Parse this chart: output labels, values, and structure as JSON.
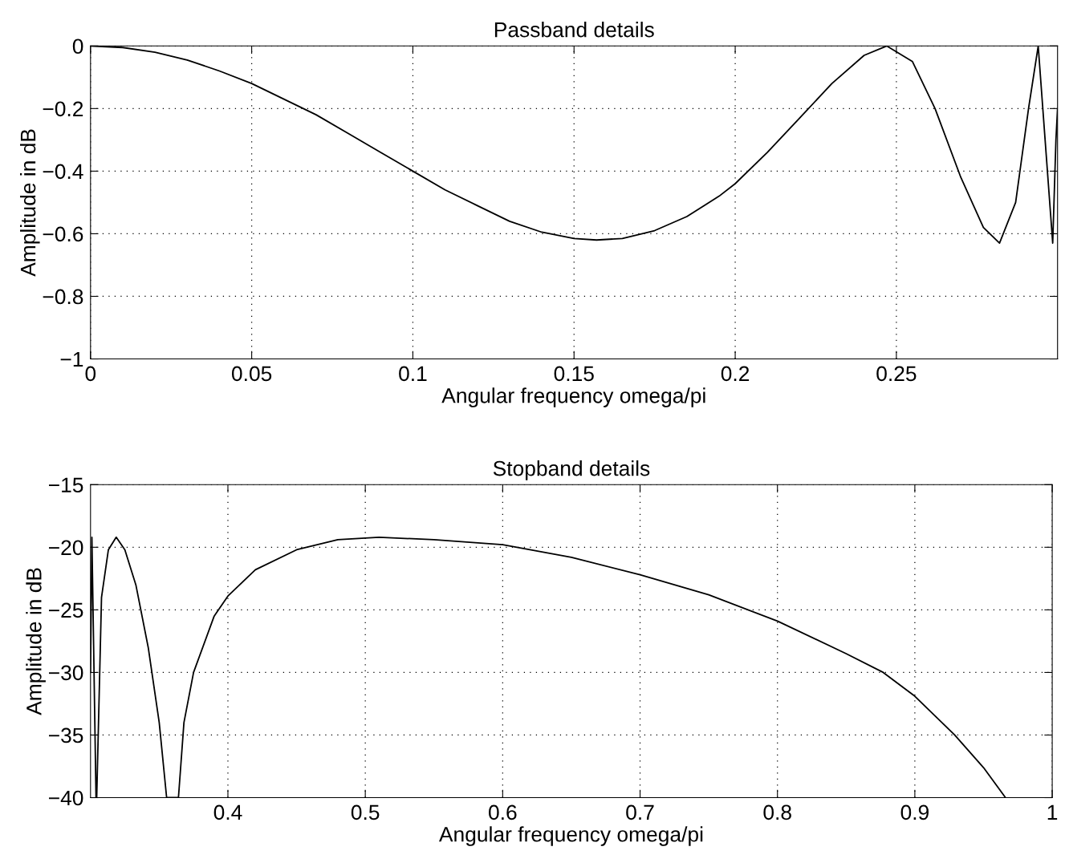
{
  "chart_data": [
    {
      "type": "line",
      "title": "Passband details",
      "xlabel": "Angular frequency omega/pi",
      "ylabel": "Amplitude in dB",
      "x": [
        0,
        0.01,
        0.02,
        0.03,
        0.04,
        0.05,
        0.06,
        0.07,
        0.08,
        0.09,
        0.1,
        0.11,
        0.12,
        0.13,
        0.14,
        0.15,
        0.157,
        0.165,
        0.175,
        0.185,
        0.195,
        0.2,
        0.21,
        0.22,
        0.23,
        0.24,
        0.247,
        0.255,
        0.262,
        0.27,
        0.277,
        0.282,
        0.287,
        0.291,
        0.294,
        0.2965,
        0.2985,
        0.2995,
        0.3
      ],
      "series": [
        {
          "color": "#000000",
          "values": [
            0,
            -0.005,
            -0.02,
            -0.045,
            -0.08,
            -0.12,
            -0.17,
            -0.22,
            -0.28,
            -0.34,
            -0.4,
            -0.46,
            -0.51,
            -0.56,
            -0.595,
            -0.615,
            -0.62,
            -0.615,
            -0.59,
            -0.545,
            -0.48,
            -0.44,
            -0.34,
            -0.23,
            -0.12,
            -0.03,
            0,
            -0.05,
            -0.2,
            -0.42,
            -0.58,
            -0.63,
            -0.5,
            -0.2,
            0,
            -0.35,
            -0.63,
            -0.3,
            -0.2
          ]
        }
      ],
      "xlim": [
        0,
        0.3
      ],
      "xticks": [
        0,
        0.05,
        0.1,
        0.15,
        0.2,
        0.25
      ],
      "ylim": [
        -1,
        0
      ],
      "yticks": [
        -1,
        -0.8,
        -0.6,
        -0.4,
        -0.2,
        0
      ],
      "grid": true,
      "line_style": "solid",
      "marker": "none"
    },
    {
      "type": "line",
      "title": "Stopband details",
      "xlabel": "Angular frequency omega/pi",
      "ylabel": "Amplitude in dB",
      "x": [
        0.3,
        0.301,
        0.304,
        0.3045,
        0.308,
        0.313,
        0.3187,
        0.325,
        0.333,
        0.342,
        0.35,
        0.3554,
        0.364,
        0.368,
        0.375,
        0.39,
        0.4,
        0.42,
        0.45,
        0.48,
        0.51,
        0.55,
        0.6,
        0.65,
        0.7,
        0.75,
        0.8,
        0.85,
        0.877,
        0.9,
        0.929,
        0.95,
        0.966
      ],
      "series": [
        {
          "color": "#000000",
          "values": [
            -30,
            -19.2,
            -40,
            -40,
            -24,
            -20.2,
            -19.2,
            -20.2,
            -23,
            -28,
            -34,
            -40,
            -40,
            -34,
            -30,
            -25.5,
            -23.9,
            -21.8,
            -20.2,
            -19.4,
            -19.2,
            -19.4,
            -19.8,
            -20.8,
            -22.2,
            -23.8,
            -25.9,
            -28.5,
            -30,
            -31.9,
            -35,
            -37.6,
            -40
          ]
        }
      ],
      "xlim": [
        0.3,
        1
      ],
      "xticks": [
        0.4,
        0.5,
        0.6,
        0.7,
        0.8,
        0.9,
        1
      ],
      "ylim": [
        -40,
        -15
      ],
      "yticks": [
        -40,
        -35,
        -30,
        -25,
        -20,
        -15
      ],
      "grid": true,
      "line_style": "solid",
      "marker": "none"
    }
  ]
}
